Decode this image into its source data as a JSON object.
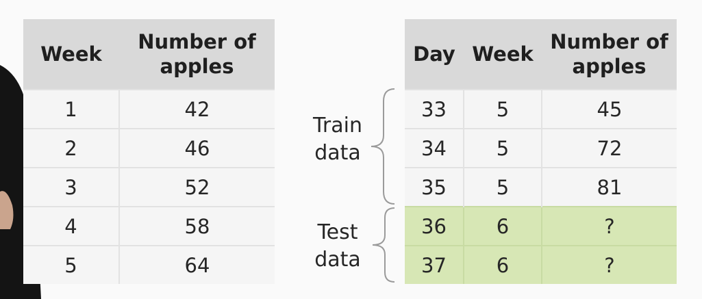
{
  "left_table": {
    "headers": [
      "Week",
      "Number of apples"
    ],
    "rows": [
      [
        "1",
        "42"
      ],
      [
        "2",
        "46"
      ],
      [
        "3",
        "52"
      ],
      [
        "4",
        "58"
      ],
      [
        "5",
        "64"
      ]
    ]
  },
  "right_table": {
    "headers": [
      "Day",
      "Week",
      "Number of apples"
    ],
    "rows": [
      [
        "33",
        "5",
        "45"
      ],
      [
        "34",
        "5",
        "72"
      ],
      [
        "35",
        "5",
        "81"
      ],
      [
        "36",
        "6",
        "?"
      ],
      [
        "37",
        "6",
        "?"
      ]
    ]
  },
  "labels": {
    "train": [
      "Train",
      "data"
    ],
    "test": [
      "Test",
      "data"
    ]
  },
  "colors": {
    "header_bg": "#d9d9d9",
    "cell_bg": "#f5f5f5",
    "test_bg": "#d7e7b5"
  }
}
